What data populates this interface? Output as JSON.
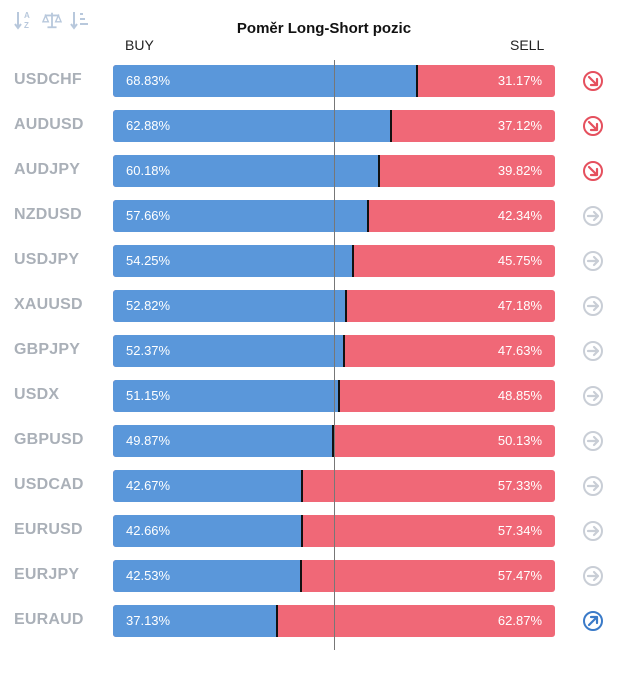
{
  "header": {
    "title": "Poměr Long-Short pozic",
    "buy_label": "BUY",
    "sell_label": "SELL"
  },
  "toolbar": {
    "icons": [
      "sort-alpha-icon",
      "sort-balance-icon",
      "sort-numeric-icon"
    ]
  },
  "colors": {
    "buy": "#5a97da",
    "sell": "#f06877",
    "trend_down": "#e5505e",
    "trend_neutral": "#c9ced6",
    "trend_up": "#3a7ac8",
    "symbol": "#aab0b8"
  },
  "chart_data": {
    "type": "bar",
    "stacked": true,
    "orientation": "horizontal",
    "title": "Poměr Long-Short pozic",
    "categories": [
      "USDCHF",
      "AUDUSD",
      "AUDJPY",
      "NZDUSD",
      "USDJPY",
      "XAUUSD",
      "GBPJPY",
      "USDX",
      "GBPUSD",
      "USDCAD",
      "EURUSD",
      "EURJPY",
      "EURAUD"
    ],
    "series": [
      {
        "name": "BUY",
        "values": [
          68.83,
          62.88,
          60.18,
          57.66,
          54.25,
          52.82,
          52.37,
          51.15,
          49.87,
          42.67,
          42.66,
          42.53,
          37.13
        ]
      },
      {
        "name": "SELL",
        "values": [
          31.17,
          37.12,
          39.82,
          42.34,
          45.75,
          47.18,
          47.63,
          48.85,
          50.13,
          57.33,
          57.34,
          57.47,
          62.87
        ]
      }
    ],
    "buy_labels": [
      "68.83%",
      "62.88%",
      "60.18%",
      "57.66%",
      "54.25%",
      "52.82%",
      "52.37%",
      "51.15%",
      "49.87%",
      "42.67%",
      "42.66%",
      "42.53%",
      "37.13%"
    ],
    "sell_labels": [
      "31.17%",
      "37.12%",
      "39.82%",
      "42.34%",
      "45.75%",
      "47.18%",
      "47.63%",
      "48.85%",
      "50.13%",
      "57.33%",
      "57.34%",
      "57.47%",
      "62.87%"
    ],
    "trend_icons": [
      "arrow-down-right-icon",
      "arrow-down-right-icon",
      "arrow-down-right-icon",
      "arrow-right-icon",
      "arrow-right-icon",
      "arrow-right-icon",
      "arrow-right-icon",
      "arrow-right-icon",
      "arrow-right-icon",
      "arrow-right-icon",
      "arrow-right-icon",
      "arrow-right-icon",
      "arrow-up-right-icon"
    ],
    "xlim": [
      0,
      100
    ],
    "reference_line": 50,
    "grid": false
  }
}
